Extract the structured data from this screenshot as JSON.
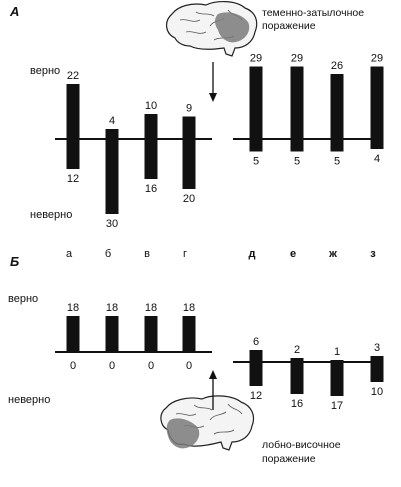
{
  "panels": [
    {
      "letter": "А",
      "label_true": "верно",
      "label_false": "неверно",
      "lesion_label_line1": "теменно-затылочное",
      "lesion_label_line2": "поражение",
      "lesion_icon": "brain-parieto-occipital-lesion-icon"
    },
    {
      "letter": "Б",
      "label_true": "верно",
      "label_false": "неверно",
      "lesion_label_line1": "лобно-височное",
      "lesion_label_line2": "поражение",
      "lesion_icon": "brain-fronto-temporal-lesion-icon"
    }
  ],
  "colors": {
    "bars": "#111111",
    "lesion": "#7a7a7a"
  },
  "chart_data": [
    {
      "type": "bar",
      "panel": "А",
      "categories": [
        "а",
        "б",
        "в",
        "г",
        "д",
        "е",
        "ж",
        "з"
      ],
      "series": [
        {
          "name": "верно",
          "values": [
            22,
            4,
            10,
            9,
            29,
            29,
            26,
            29
          ]
        },
        {
          "name": "неверно",
          "values": [
            12,
            30,
            16,
            20,
            5,
            5,
            5,
            4
          ]
        }
      ],
      "layout": "diverging bars around a horizontal baseline; two groups of four (а–г, д–з)"
    },
    {
      "type": "bar",
      "panel": "Б",
      "categories": [
        "",
        "",
        "",
        "",
        "",
        "",
        "",
        ""
      ],
      "series": [
        {
          "name": "верно",
          "values": [
            18,
            18,
            18,
            18,
            6,
            2,
            1,
            3
          ]
        },
        {
          "name": "неверно",
          "values": [
            0,
            0,
            0,
            0,
            12,
            16,
            17,
            10
          ]
        }
      ],
      "layout": "diverging bars around a horizontal baseline; two groups of four"
    }
  ]
}
